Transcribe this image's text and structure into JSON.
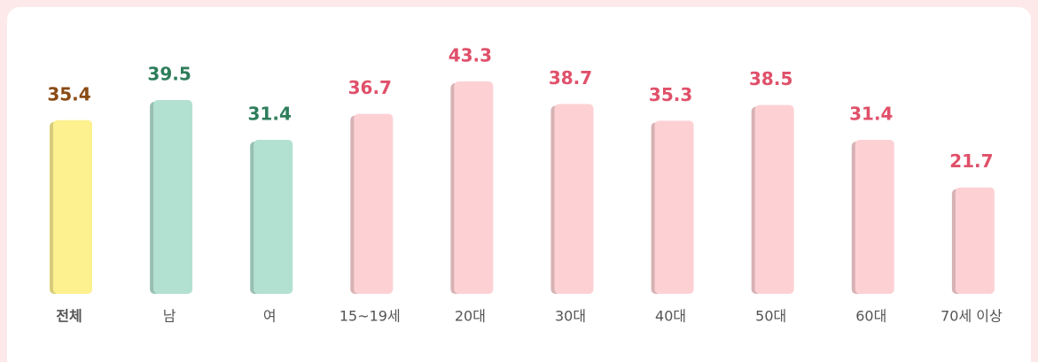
{
  "chart_data": {
    "type": "bar",
    "categories": [
      "전체",
      "남",
      "여",
      "15~19세",
      "20대",
      "30대",
      "40대",
      "50대",
      "60대",
      "70세 이상"
    ],
    "values": [
      35.4,
      39.5,
      31.4,
      36.7,
      43.3,
      38.7,
      35.3,
      38.5,
      31.4,
      21.7
    ],
    "colors": [
      "#fdf08f",
      "#b3e1d1",
      "#b3e1d1",
      "#fdd1d4",
      "#fdd1d4",
      "#fdd1d4",
      "#fdd1d4",
      "#fdd1d4",
      "#fdd1d4",
      "#fdd1d4"
    ],
    "label_colors": [
      "#8a4a12",
      "#2e7d5b",
      "#2e7d5b",
      "#e0506a",
      "#e0506a",
      "#e0506a",
      "#e0506a",
      "#e0506a",
      "#e0506a",
      "#e0506a"
    ]
  }
}
